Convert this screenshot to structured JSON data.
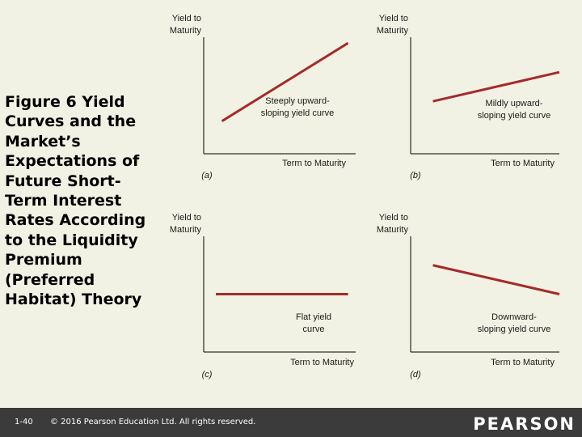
{
  "slide": {
    "title": "Figure 6 Yield Curves and the Market’s Expectations of Future Short-Term Interest Rates According to the Liquidity Premium (Preferred Habitat) Theory"
  },
  "footer": {
    "page_number": "1-40",
    "copyright": "© 2016 Pearson Education Ltd. All rights reserved.",
    "brand": "PEARSON"
  },
  "colors": {
    "curve": "#a52a2a",
    "axis": "#000000",
    "background": "#f2f2e4",
    "footer": "#3b3b3b"
  },
  "chart_data": [
    {
      "type": "line",
      "panel_label": "(a)",
      "ylabel": "Yield to Maturity",
      "xlabel": "Term to Maturity",
      "curve_label": "Steeply upward-sloping yield curve",
      "xlim": [
        0,
        1
      ],
      "ylim": [
        0,
        1
      ],
      "x": [
        0.12,
        0.95
      ],
      "y": [
        0.28,
        0.95
      ]
    },
    {
      "type": "line",
      "panel_label": "(b)",
      "ylabel": "Yield to Maturity",
      "xlabel": "Term to Maturity",
      "curve_label": "Mildly upward-sloping yield curve",
      "xlim": [
        0,
        1
      ],
      "ylim": [
        0,
        1
      ],
      "x": [
        0.15,
        1.0
      ],
      "y": [
        0.45,
        0.7
      ]
    },
    {
      "type": "line",
      "panel_label": "(c)",
      "ylabel": "Yield to Maturity",
      "xlabel": "Term to Maturity",
      "curve_label": "Flat yield curve",
      "xlim": [
        0,
        1
      ],
      "ylim": [
        0,
        1
      ],
      "x": [
        0.08,
        0.95
      ],
      "y": [
        0.5,
        0.5
      ]
    },
    {
      "type": "line",
      "panel_label": "(d)",
      "ylabel": "Yield to Maturity",
      "xlabel": "Term to Maturity",
      "curve_label": "Downward-sloping yield curve",
      "xlim": [
        0,
        1
      ],
      "ylim": [
        0,
        1
      ],
      "x": [
        0.15,
        1.0
      ],
      "y": [
        0.75,
        0.5
      ]
    }
  ]
}
